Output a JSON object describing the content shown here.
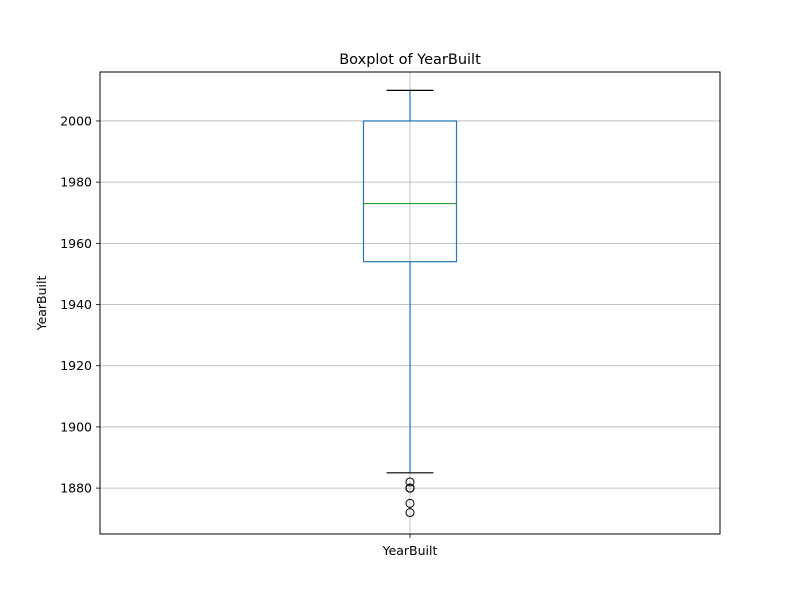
{
  "chart_data": {
    "type": "box",
    "title": "Boxplot of YearBuilt",
    "xlabel": "",
    "ylabel": "YearBuilt",
    "categories": [
      "YearBuilt"
    ],
    "ylim": [
      1865,
      2016
    ],
    "yticks": [
      1880,
      1900,
      1920,
      1940,
      1960,
      1980,
      2000
    ],
    "grid": true,
    "boxes": [
      {
        "category": "YearBuilt",
        "whisker_low": 1885,
        "q1": 1954,
        "median": 1973,
        "q3": 2000,
        "whisker_high": 2010,
        "outliers": [
          1872,
          1875,
          1880,
          1880,
          1880,
          1882
        ]
      }
    ],
    "colors": {
      "box": "#1f77b4",
      "median": "#2ca02c",
      "caps": "#000000",
      "grid": "#b0b0b0",
      "outlier_edge": "#000000"
    }
  }
}
